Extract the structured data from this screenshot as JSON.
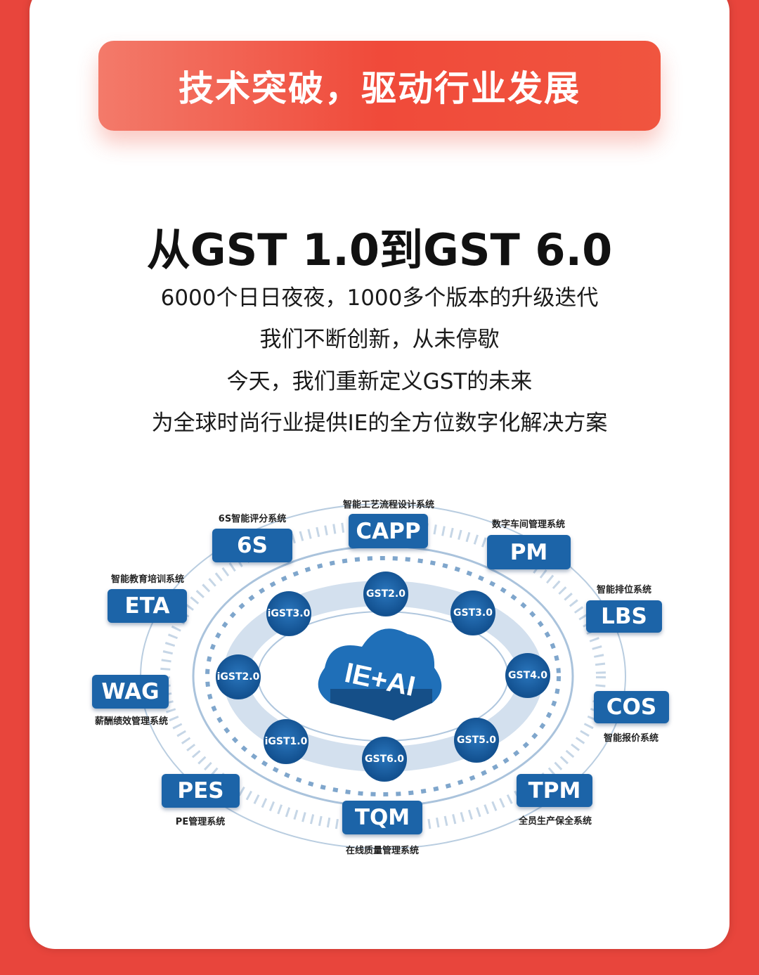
{
  "banner": {
    "text": "技术突破，驱动行业发展"
  },
  "headline": "从GST 1.0到GST 6.0",
  "lines": [
    "6000个日日夜夜，1000多个版本的升级迭代",
    "我们不断创新，从未停歇",
    "今天，我们重新定义GST的未来",
    "为全球时尚行业提供IE的全方位数字化解决方案"
  ],
  "diagram": {
    "center": "IE+AI",
    "versions": [
      "GST2.0",
      "GST3.0",
      "GST4.0",
      "GST5.0",
      "GST6.0",
      "iGST1.0",
      "iGST2.0",
      "iGST3.0"
    ],
    "systems": [
      {
        "code": "6S",
        "name": "6S智能评分系统"
      },
      {
        "code": "CAPP",
        "name": "智能工艺流程设计系统"
      },
      {
        "code": "PM",
        "name": "数字车间管理系统"
      },
      {
        "code": "ETA",
        "name": "智能教育培训系统"
      },
      {
        "code": "LBS",
        "name": "智能排位系统"
      },
      {
        "code": "WAG",
        "name": "薪酬绩效管理系统"
      },
      {
        "code": "COS",
        "name": "智能报价系统"
      },
      {
        "code": "PES",
        "name": "PE管理系统"
      },
      {
        "code": "TQM",
        "name": "在线质量管理系统"
      },
      {
        "code": "TPM",
        "name": "全员生产保全系统"
      }
    ],
    "colors": {
      "primary": "#1c64a8",
      "frame": "#e8453c"
    }
  }
}
